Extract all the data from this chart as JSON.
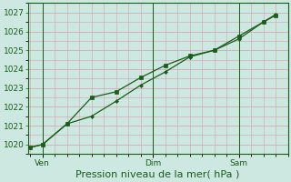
{
  "background_color": "#cce8e0",
  "grid_color_major": "#d4a0b0",
  "grid_color_minor": "#d4a0b0",
  "line_color": "#1a5c1a",
  "axis_color": "#1a5c1a",
  "xlabel": "Pression niveau de la mer( hPa )",
  "ylim": [
    1019.5,
    1027.5
  ],
  "yticks": [
    1020,
    1021,
    1022,
    1023,
    1024,
    1025,
    1026,
    1027
  ],
  "series1_x": [
    0,
    0.5,
    1.5,
    2.5,
    3.5,
    4.5,
    5.5,
    6.5,
    7.5,
    8.5,
    9.5,
    10.0
  ],
  "series1_y": [
    1019.85,
    1020.0,
    1021.1,
    1022.5,
    1022.8,
    1023.55,
    1024.2,
    1024.7,
    1025.0,
    1025.75,
    1026.5,
    1026.85
  ],
  "series2_x": [
    0,
    0.5,
    1.5,
    2.5,
    3.5,
    4.5,
    5.5,
    6.5,
    7.5,
    8.5,
    9.5,
    10.0
  ],
  "series2_y": [
    1019.85,
    1020.0,
    1021.1,
    1021.5,
    1022.3,
    1023.15,
    1023.85,
    1024.65,
    1025.0,
    1025.6,
    1026.5,
    1026.9
  ],
  "xtick_positions": [
    0.5,
    5.0,
    8.5
  ],
  "xtick_labels": [
    "Ven",
    "Dim",
    "Sam"
  ],
  "vline_positions": [
    0.5,
    5.0,
    8.5
  ],
  "xlabel_fontsize": 8,
  "tick_fontsize": 6.5,
  "figsize": [
    3.2,
    2.0
  ],
  "dpi": 100
}
